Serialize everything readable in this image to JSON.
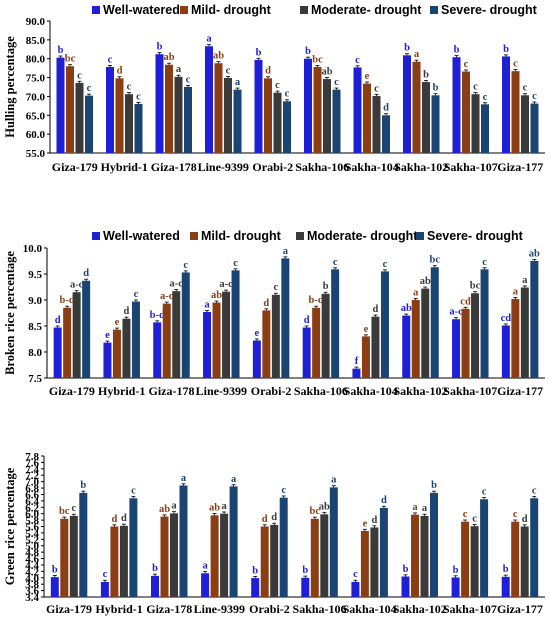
{
  "legend": {
    "series": [
      "Well-watered",
      "Mild- drought",
      "Moderate- drought",
      "Severe- drought"
    ],
    "colors": [
      "#1f1fd6",
      "#8b3d14",
      "#3a3a3a",
      "#1a4472"
    ]
  },
  "letter_colors": [
    "#1f1fd6",
    "#8b3d14",
    "#3a3a3a",
    "#1a4472"
  ],
  "chart_data": [
    {
      "type": "bar",
      "ylabel": "Hulling percentage",
      "ylim": [
        55,
        90
      ],
      "yticks": [
        "55.0",
        "60.0",
        "65.0",
        "70.0",
        "75.0",
        "80.0",
        "85.0",
        "90.0"
      ],
      "categories": [
        "Giza-179",
        "Hybrid-1",
        "Giza-178",
        "Line-9399",
        "Orabi-2",
        "Sakha-106",
        "Sakha-104",
        "Sakha-102",
        "Sakha-107",
        "Giza-177"
      ],
      "series": [
        {
          "name": "Well-watered",
          "values": [
            80.3,
            77.8,
            81.2,
            83.3,
            79.7,
            80.0,
            77.7,
            80.9,
            80.4,
            80.6
          ],
          "letters": [
            "b",
            "c",
            "b",
            "a",
            "b",
            "b",
            "c",
            "b",
            "b",
            "b"
          ]
        },
        {
          "name": "Mild- drought",
          "values": [
            78.0,
            74.8,
            78.4,
            78.8,
            74.8,
            77.8,
            73.4,
            79.2,
            76.6,
            76.7
          ],
          "letters": [
            "bc",
            "d",
            "ab",
            "ab",
            "d",
            "bc",
            "e",
            "a",
            "c",
            "c"
          ]
        },
        {
          "name": "Moderate- drought",
          "values": [
            73.6,
            70.6,
            75.2,
            74.9,
            71.0,
            74.6,
            70.1,
            73.8,
            70.6,
            70.3
          ],
          "letters": [
            "c",
            "c",
            "a",
            "c",
            "c",
            "ab",
            "c",
            "b",
            "c",
            "c"
          ]
        },
        {
          "name": "Severe- drought",
          "values": [
            70.2,
            68.0,
            72.5,
            71.8,
            68.7,
            71.8,
            65.0,
            70.3,
            67.9,
            68.1
          ],
          "letters": [
            "c",
            "c",
            "c",
            "a",
            "c",
            "c",
            "d",
            "b",
            "c",
            "c"
          ]
        }
      ]
    },
    {
      "type": "bar",
      "ylabel": "Broken rice percentage",
      "ylim": [
        7.5,
        10.0
      ],
      "yticks": [
        "7.5",
        "8.0",
        "8.5",
        "9.0",
        "9.5",
        "10.0"
      ],
      "categories": [
        "Giza-179",
        "Hybrid-1",
        "Giza-178",
        "Line-9399",
        "Orabi-2",
        "Sakha-106",
        "Sakha-104",
        "Sakha-102",
        "Sakha-107",
        "Giza-177"
      ],
      "series": [
        {
          "name": "Well-watered",
          "values": [
            8.47,
            8.18,
            8.57,
            8.77,
            8.22,
            8.47,
            7.68,
            8.7,
            8.63,
            8.51
          ],
          "letters": [
            "d",
            "e",
            "b-d",
            "a",
            "e",
            "d",
            "f",
            "ab",
            "a-c",
            "cd"
          ]
        },
        {
          "name": "Mild- drought",
          "values": [
            8.85,
            8.43,
            8.93,
            8.95,
            8.8,
            8.85,
            8.3,
            9.0,
            8.83,
            9.02
          ],
          "letters": [
            "b-d",
            "e",
            "a-c",
            "ab",
            "d",
            "b-d",
            "e",
            "a",
            "cd",
            "a"
          ]
        },
        {
          "name": "Moderate- drought",
          "values": [
            9.15,
            8.64,
            9.17,
            9.16,
            9.1,
            9.12,
            8.68,
            9.22,
            9.13,
            9.24
          ],
          "letters": [
            "a-c",
            "d",
            "a-c",
            "a-c",
            "c",
            "b",
            "d",
            "ab",
            "bc",
            "a"
          ]
        },
        {
          "name": "Severe- drought",
          "values": [
            9.37,
            8.97,
            9.53,
            9.57,
            9.8,
            9.59,
            9.55,
            9.63,
            9.59,
            9.75
          ],
          "letters": [
            "d",
            "c",
            "c",
            "c",
            "a",
            "c",
            "c",
            "bc",
            "c",
            "ab"
          ]
        }
      ]
    },
    {
      "type": "bar",
      "ylabel": "Green rice percentage",
      "ylim": [
        3.4,
        7.8
      ],
      "yticks": [
        "3.4",
        "3.6",
        "3.8",
        "4.0",
        "4.2",
        "4.4",
        "4.6",
        "4.8",
        "5.0",
        "5.2",
        "5.4",
        "5.6",
        "5.8",
        "6.0",
        "6.2",
        "6.4",
        "6.6",
        "6.8",
        "7.0",
        "7.2",
        "7.4",
        "7.6",
        "7.8"
      ],
      "categories": [
        "Giza-179",
        "Hybrid-1",
        "Giza-178",
        "Line-9399",
        "Orabi-2",
        "Sakha-106",
        "Sakha-104",
        "Sakha-102",
        "Sakha-107",
        "Giza-177"
      ],
      "series": [
        {
          "name": "Well-watered",
          "values": [
            4.02,
            3.87,
            4.06,
            4.14,
            3.99,
            4.0,
            3.87,
            4.04,
            4.01,
            4.03
          ],
          "letters": [
            "b",
            "c",
            "b",
            "a",
            "b",
            "b",
            "c",
            "b",
            "b",
            "b"
          ]
        },
        {
          "name": "Mild- drought",
          "values": [
            5.84,
            5.6,
            5.91,
            5.95,
            5.6,
            5.84,
            5.46,
            5.97,
            5.75,
            5.75
          ],
          "letters": [
            "bc",
            "d",
            "ab",
            "ab",
            "d",
            "bc",
            "e",
            "a",
            "c",
            "c"
          ]
        },
        {
          "name": "Moderate- drought",
          "values": [
            5.93,
            5.62,
            6.01,
            6.0,
            5.65,
            5.98,
            5.57,
            5.93,
            5.61,
            5.6
          ],
          "letters": [
            "c",
            "d",
            "a",
            "a",
            "d",
            "ab",
            "d",
            "a",
            "c",
            "d"
          ]
        },
        {
          "name": "Severe- drought",
          "values": [
            6.65,
            6.48,
            6.88,
            6.85,
            6.5,
            6.82,
            6.18,
            6.65,
            6.45,
            6.48
          ],
          "letters": [
            "b",
            "c",
            "a",
            "a",
            "c",
            "a",
            "d",
            "b",
            "c",
            "c"
          ]
        }
      ]
    }
  ]
}
